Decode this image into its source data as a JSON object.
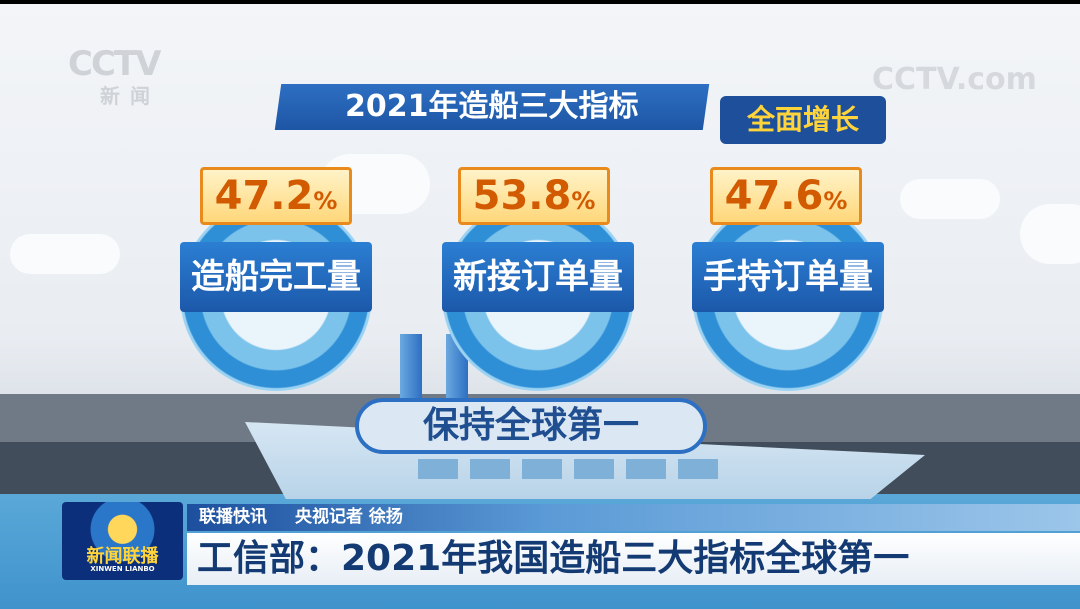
{
  "watermarks": {
    "left": "CCTV",
    "left_sub": "新闻",
    "right": "CCTV.com"
  },
  "infographic": {
    "title": "2021年造船三大指标",
    "badge": "全面增长",
    "indicators": [
      {
        "value": "47.2",
        "unit": "%",
        "label": "造船完工量"
      },
      {
        "value": "53.8",
        "unit": "%",
        "label": "新接订单量"
      },
      {
        "value": "47.6",
        "unit": "%",
        "label": "手持订单量"
      }
    ],
    "motto": "保持全球第一"
  },
  "lower_third": {
    "program_logo": "新闻联播",
    "program_logo_en": "XINWEN LIANBO",
    "segment": "联播快讯",
    "reporter": "央视记者 徐扬",
    "headline": "工信部：2021年我国造船三大指标全球第一"
  }
}
